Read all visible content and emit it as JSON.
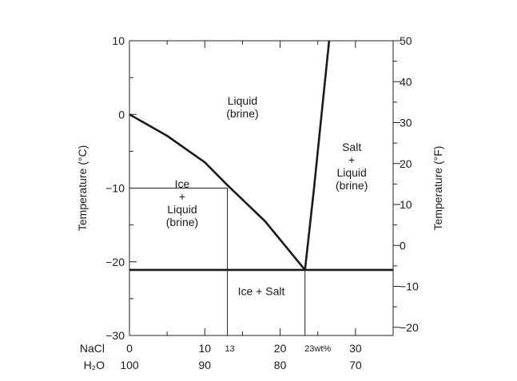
{
  "chart_data": {
    "type": "line",
    "title": "",
    "ylabel_left": "Temperature (°C)",
    "ylabel_right": "Temperature (°F)",
    "xlim": [
      0,
      35
    ],
    "ylim": [
      -30,
      10
    ],
    "y_left_ticks": [
      "10",
      "0",
      "−10",
      "−20",
      "−30"
    ],
    "y_right_ticks": [
      "50",
      "40",
      "30",
      "20",
      "10",
      "0",
      "−10",
      "−20"
    ],
    "x_axis_rows": [
      {
        "name": "NaCl",
        "ticks": [
          {
            "x": 0,
            "label": "0"
          },
          {
            "x": 10,
            "label": "10"
          },
          {
            "x": 20,
            "label": "20"
          },
          {
            "x": 30,
            "label": "30"
          }
        ]
      },
      {
        "name": "H₂O",
        "ticks": [
          {
            "x": 0,
            "label": "100"
          },
          {
            "x": 10,
            "label": "90"
          },
          {
            "x": 20,
            "label": "80"
          },
          {
            "x": 30,
            "label": "70"
          }
        ]
      }
    ],
    "series": [
      {
        "values": [
          [
            0,
            0
          ],
          [
            5,
            -2.9
          ],
          [
            10,
            -6.5
          ],
          [
            13,
            -9.6
          ],
          [
            18,
            -14.5
          ],
          [
            23.3,
            -21.1
          ]
        ]
      },
      {
        "values": [
          [
            23.3,
            -21.1
          ],
          [
            24.5,
            -10
          ],
          [
            25.5,
            0
          ],
          [
            26.5,
            10
          ]
        ]
      },
      {
        "values": [
          [
            0,
            -21.1
          ],
          [
            35,
            -21.1
          ]
        ]
      }
    ],
    "guide_lines": [
      {
        "points": [
          [
            0,
            -10
          ],
          [
            13,
            -10
          ],
          [
            13,
            -30
          ]
        ]
      },
      {
        "points": [
          [
            23.3,
            -21.1
          ],
          [
            23.3,
            -30
          ]
        ]
      }
    ],
    "annotations": [
      {
        "x": 13,
        "label": "13"
      },
      {
        "x": 23.3,
        "label": "23wt%"
      }
    ],
    "regions": [
      {
        "lines": [
          "Liquid",
          "(brine)"
        ],
        "x": 15,
        "y": 1
      },
      {
        "lines": [
          "Ice",
          "+",
          "Liquid",
          "(brine)"
        ],
        "x": 7,
        "y": -12
      },
      {
        "lines": [
          "Salt",
          "+",
          "Liquid",
          "(brine)"
        ],
        "x": 29.5,
        "y": -7
      },
      {
        "lines": [
          "Ice + Salt"
        ],
        "x": 17.5,
        "y": -24
      }
    ],
    "grid": false
  }
}
